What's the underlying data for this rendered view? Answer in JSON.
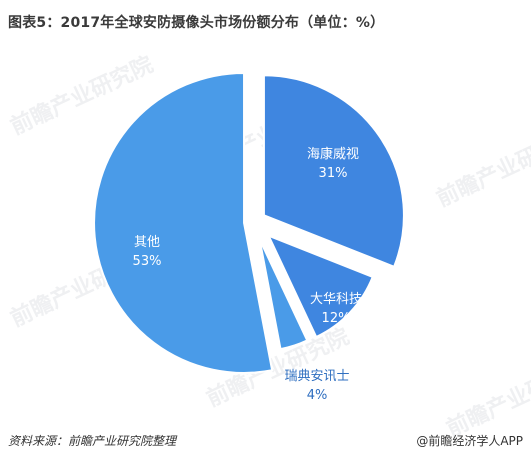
{
  "title": "图表5：2017年全球安防摄像头市场份额分布（单位：%）",
  "footer": {
    "source": "资料来源：前瞻产业研究院整理",
    "credit": "@前瞻经济学人APP"
  },
  "watermark": "前瞻产业研究院",
  "colors": {
    "海康威视": "#3f86e0",
    "大华科技": "#3f86e0",
    "瑞典安讯士": "#4a9be8",
    "其他": "#4a9be8",
    "label_light": "#ffffff",
    "label_dark": "#2f6fc0"
  },
  "chart_data": {
    "type": "pie",
    "title": "图表5：2017年全球安防摄像头市场份额分布（单位：%）",
    "slices": [
      {
        "label": "海康威视",
        "value": 31,
        "display": "31%"
      },
      {
        "label": "大华科技",
        "value": 12,
        "display": "12%"
      },
      {
        "label": "瑞典安讯士",
        "value": 4,
        "display": "4%"
      },
      {
        "label": "其他",
        "value": 53,
        "display": "53%"
      }
    ],
    "start_angle_deg": 0,
    "exploded": true
  }
}
